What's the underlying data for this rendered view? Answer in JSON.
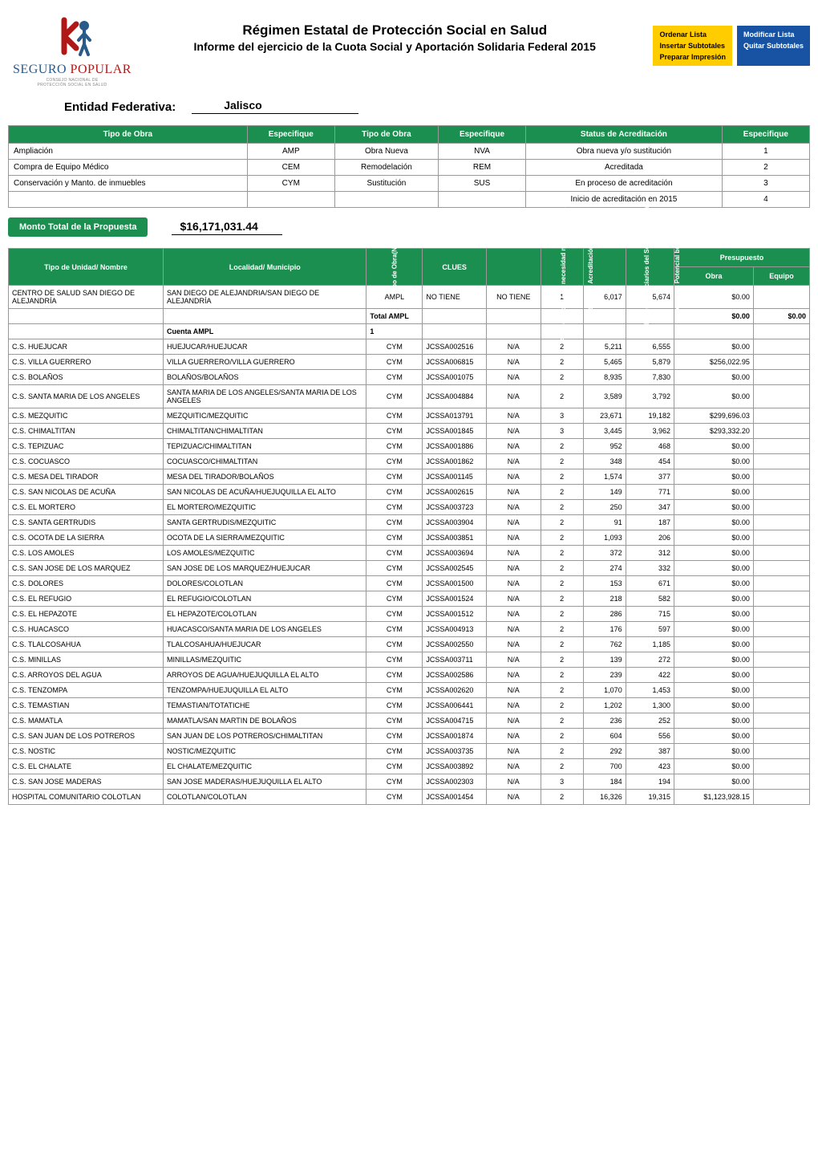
{
  "header": {
    "logo_brand_seguro": "SEGURO",
    "logo_brand_popular": "POPULAR",
    "logo_subline1": "CONSEJO NACIONAL DE",
    "logo_subline2": "PROTECCIÓN SOCIAL EN SALUD",
    "title_main": "Régimen Estatal de Protección Social en Salud",
    "title_sub": "Informe del ejercicio de la Cuota Social y Aportación Solidaria Federal 2015",
    "btn_yellow": [
      "Ordenar Lista",
      "Insertar Subtotales",
      "Preparar Impresión"
    ],
    "btn_blue": [
      "Modificar Lista",
      "Quitar Subtotales"
    ]
  },
  "entidad": {
    "label": "Entidad Federativa:",
    "value": "Jalisco"
  },
  "tipos": {
    "headers": [
      "Tipo de Obra",
      "Especifique",
      "Tipo de Obra",
      "Especifique",
      "Status de Acreditación",
      "Especifique"
    ],
    "rows": [
      [
        "Ampliación",
        "AMP",
        "Obra Nueva",
        "NVA",
        "Obra nueva y/o sustitución",
        "1"
      ],
      [
        "Compra de Equipo Médico",
        "CEM",
        "Remodelación",
        "REM",
        "Acreditada",
        "2"
      ],
      [
        "Conservación y Manto. de inmuebles",
        "CYM",
        "Sustitución",
        "SUS",
        "En proceso de acreditación",
        "3"
      ],
      [
        "",
        "",
        "",
        "",
        "Inicio de acreditación en 2015",
        "4"
      ]
    ]
  },
  "monto": {
    "label": "Monto Total de la Propuesta",
    "value": "$16,171,031.44"
  },
  "main": {
    "headers": {
      "tipo_unidad": "Tipo de Unidad/ Nombre",
      "localidad": "Localidad/ Municipio",
      "tipo_obra": "Tipo de Obra(NV,",
      "clues": "CLUES",
      "pmi": "PMI Certificado de necesidad no aplica para CYM",
      "status": "Status de Acreditación (1,2,3,4)",
      "benef": "No. de Beneficiarios del Seguro Popular",
      "poblacion": "Población Potencial beneficiaria",
      "presupuesto": "Presupuesto",
      "obra": "Obra",
      "equipo": "Equipo"
    },
    "rows": [
      {
        "tipo": "CENTRO DE SALUD SAN DIEGO DE ALEJANDRÍA",
        "loc": "SAN DIEGO DE ALEJANDRIA/SAN DIEGO DE ALEJANDRÍA",
        "tobra": "AMPL",
        "clues": "NO TIENE",
        "pmi": "NO TIENE",
        "st": "1",
        "ben": "6,017",
        "pob": "5,674",
        "obra": "$0.00",
        "eq": ""
      },
      {
        "tipo": "",
        "loc": "",
        "tobra": "Total AMPL",
        "clues": "",
        "pmi": "",
        "st": "",
        "ben": "",
        "pob": "",
        "obra": "$0.00",
        "eq": "$0.00",
        "bold": true
      },
      {
        "tipo": "",
        "loc": "Cuenta AMPL",
        "tobra": "1",
        "clues": "",
        "pmi": "",
        "st": "",
        "ben": "",
        "pob": "",
        "obra": "",
        "eq": "",
        "bold": true
      },
      {
        "tipo": "C.S. HUEJUCAR",
        "loc": "HUEJUCAR/HUEJUCAR",
        "tobra": "CYM",
        "clues": "JCSSA002516",
        "pmi": "N/A",
        "st": "2",
        "ben": "5,211",
        "pob": "6,555",
        "obra": "$0.00",
        "eq": ""
      },
      {
        "tipo": "C.S. VILLA GUERRERO",
        "loc": "VILLA GUERRERO/VILLA GUERRERO",
        "tobra": "CYM",
        "clues": "JCSSA006815",
        "pmi": "N/A",
        "st": "2",
        "ben": "5,465",
        "pob": "5,879",
        "obra": "$256,022.95",
        "eq": ""
      },
      {
        "tipo": "C.S. BOLAÑOS",
        "loc": "BOLAÑOS/BOLAÑOS",
        "tobra": "CYM",
        "clues": "JCSSA001075",
        "pmi": "N/A",
        "st": "2",
        "ben": "8,935",
        "pob": "7,830",
        "obra": "$0.00",
        "eq": ""
      },
      {
        "tipo": "C.S. SANTA MARIA DE LOS ANGELES",
        "loc": "SANTA MARIA DE LOS ANGELES/SANTA MARIA DE LOS ANGELES",
        "tobra": "CYM",
        "clues": "JCSSA004884",
        "pmi": "N/A",
        "st": "2",
        "ben": "3,589",
        "pob": "3,792",
        "obra": "$0.00",
        "eq": ""
      },
      {
        "tipo": "C.S. MEZQUITIC",
        "loc": "MEZQUITIC/MEZQUITIC",
        "tobra": "CYM",
        "clues": "JCSSA013791",
        "pmi": "N/A",
        "st": "3",
        "ben": "23,671",
        "pob": "19,182",
        "obra": "$299,696.03",
        "eq": ""
      },
      {
        "tipo": "C.S. CHIMALTITAN",
        "loc": "CHIMALTITAN/CHIMALTITAN",
        "tobra": "CYM",
        "clues": "JCSSA001845",
        "pmi": "N/A",
        "st": "3",
        "ben": "3,445",
        "pob": "3,962",
        "obra": "$293,332.20",
        "eq": ""
      },
      {
        "tipo": "C.S. TEPIZUAC",
        "loc": "TEPIZUAC/CHIMALTITAN",
        "tobra": "CYM",
        "clues": "JCSSA001886",
        "pmi": "N/A",
        "st": "2",
        "ben": "952",
        "pob": "468",
        "obra": "$0.00",
        "eq": ""
      },
      {
        "tipo": "C.S. COCUASCO",
        "loc": "COCUASCO/CHIMALTITAN",
        "tobra": "CYM",
        "clues": "JCSSA001862",
        "pmi": "N/A",
        "st": "2",
        "ben": "348",
        "pob": "454",
        "obra": "$0.00",
        "eq": ""
      },
      {
        "tipo": "C.S. MESA DEL TIRADOR",
        "loc": "MESA DEL TIRADOR/BOLAÑOS",
        "tobra": "CYM",
        "clues": "JCSSA001145",
        "pmi": "N/A",
        "st": "2",
        "ben": "1,574",
        "pob": "377",
        "obra": "$0.00",
        "eq": ""
      },
      {
        "tipo": "C.S. SAN NICOLAS DE ACUÑA",
        "loc": "SAN NICOLAS DE ACUÑA/HUEJUQUILLA EL ALTO",
        "tobra": "CYM",
        "clues": "JCSSA002615",
        "pmi": "N/A",
        "st": "2",
        "ben": "149",
        "pob": "771",
        "obra": "$0.00",
        "eq": ""
      },
      {
        "tipo": "C.S. EL MORTERO",
        "loc": "EL MORTERO/MEZQUITIC",
        "tobra": "CYM",
        "clues": "JCSSA003723",
        "pmi": "N/A",
        "st": "2",
        "ben": "250",
        "pob": "347",
        "obra": "$0.00",
        "eq": ""
      },
      {
        "tipo": "C.S. SANTA GERTRUDIS",
        "loc": "SANTA GERTRUDIS/MEZQUITIC",
        "tobra": "CYM",
        "clues": "JCSSA003904",
        "pmi": "N/A",
        "st": "2",
        "ben": "91",
        "pob": "187",
        "obra": "$0.00",
        "eq": ""
      },
      {
        "tipo": "C.S. OCOTA DE LA SIERRA",
        "loc": "OCOTA DE LA SIERRA/MEZQUITIC",
        "tobra": "CYM",
        "clues": "JCSSA003851",
        "pmi": "N/A",
        "st": "2",
        "ben": "1,093",
        "pob": "206",
        "obra": "$0.00",
        "eq": ""
      },
      {
        "tipo": "C.S. LOS AMOLES",
        "loc": "LOS AMOLES/MEZQUITIC",
        "tobra": "CYM",
        "clues": "JCSSA003694",
        "pmi": "N/A",
        "st": "2",
        "ben": "372",
        "pob": "312",
        "obra": "$0.00",
        "eq": ""
      },
      {
        "tipo": "C.S. SAN JOSE DE LOS MARQUEZ",
        "loc": "SAN JOSE DE LOS MARQUEZ/HUEJUCAR",
        "tobra": "CYM",
        "clues": "JCSSA002545",
        "pmi": "N/A",
        "st": "2",
        "ben": "274",
        "pob": "332",
        "obra": "$0.00",
        "eq": ""
      },
      {
        "tipo": "C.S. DOLORES",
        "loc": "DOLORES/COLOTLAN",
        "tobra": "CYM",
        "clues": "JCSSA001500",
        "pmi": "N/A",
        "st": "2",
        "ben": "153",
        "pob": "671",
        "obra": "$0.00",
        "eq": ""
      },
      {
        "tipo": "C.S. EL REFUGIO",
        "loc": "EL REFUGIO/COLOTLAN",
        "tobra": "CYM",
        "clues": "JCSSA001524",
        "pmi": "N/A",
        "st": "2",
        "ben": "218",
        "pob": "582",
        "obra": "$0.00",
        "eq": ""
      },
      {
        "tipo": "C.S. EL HEPAZOTE",
        "loc": "EL HEPAZOTE/COLOTLAN",
        "tobra": "CYM",
        "clues": "JCSSA001512",
        "pmi": "N/A",
        "st": "2",
        "ben": "286",
        "pob": "715",
        "obra": "$0.00",
        "eq": ""
      },
      {
        "tipo": "C.S. HUACASCO",
        "loc": "HUACASCO/SANTA MARIA DE LOS ANGELES",
        "tobra": "CYM",
        "clues": "JCSSA004913",
        "pmi": "N/A",
        "st": "2",
        "ben": "176",
        "pob": "597",
        "obra": "$0.00",
        "eq": ""
      },
      {
        "tipo": "C.S. TLALCOSAHUA",
        "loc": "TLALCOSAHUA/HUEJUCAR",
        "tobra": "CYM",
        "clues": "JCSSA002550",
        "pmi": "N/A",
        "st": "2",
        "ben": "762",
        "pob": "1,185",
        "obra": "$0.00",
        "eq": ""
      },
      {
        "tipo": "C.S. MINILLAS",
        "loc": "MINILLAS/MEZQUITIC",
        "tobra": "CYM",
        "clues": "JCSSA003711",
        "pmi": "N/A",
        "st": "2",
        "ben": "139",
        "pob": "272",
        "obra": "$0.00",
        "eq": ""
      },
      {
        "tipo": "C.S. ARROYOS DEL AGUA",
        "loc": "ARROYOS DE AGUA/HUEJUQUILLA EL ALTO",
        "tobra": "CYM",
        "clues": "JCSSA002586",
        "pmi": "N/A",
        "st": "2",
        "ben": "239",
        "pob": "422",
        "obra": "$0.00",
        "eq": ""
      },
      {
        "tipo": "C.S. TENZOMPA",
        "loc": "TENZOMPA/HUEJUQUILLA EL ALTO",
        "tobra": "CYM",
        "clues": "JCSSA002620",
        "pmi": "N/A",
        "st": "2",
        "ben": "1,070",
        "pob": "1,453",
        "obra": "$0.00",
        "eq": ""
      },
      {
        "tipo": "C.S. TEMASTIAN",
        "loc": "TEMASTIAN/TOTATICHE",
        "tobra": "CYM",
        "clues": "JCSSA006441",
        "pmi": "N/A",
        "st": "2",
        "ben": "1,202",
        "pob": "1,300",
        "obra": "$0.00",
        "eq": ""
      },
      {
        "tipo": "C.S. MAMATLA",
        "loc": "MAMATLA/SAN MARTIN DE BOLAÑOS",
        "tobra": "CYM",
        "clues": "JCSSA004715",
        "pmi": "N/A",
        "st": "2",
        "ben": "236",
        "pob": "252",
        "obra": "$0.00",
        "eq": ""
      },
      {
        "tipo": "C.S. SAN JUAN DE LOS POTREROS",
        "loc": "SAN JUAN DE LOS POTREROS/CHIMALTITAN",
        "tobra": "CYM",
        "clues": "JCSSA001874",
        "pmi": "N/A",
        "st": "2",
        "ben": "604",
        "pob": "556",
        "obra": "$0.00",
        "eq": ""
      },
      {
        "tipo": "C.S. NOSTIC",
        "loc": "NOSTIC/MEZQUITIC",
        "tobra": "CYM",
        "clues": "JCSSA003735",
        "pmi": "N/A",
        "st": "2",
        "ben": "292",
        "pob": "387",
        "obra": "$0.00",
        "eq": ""
      },
      {
        "tipo": "C.S. EL CHALATE",
        "loc": "EL CHALATE/MEZQUITIC",
        "tobra": "CYM",
        "clues": "JCSSA003892",
        "pmi": "N/A",
        "st": "2",
        "ben": "700",
        "pob": "423",
        "obra": "$0.00",
        "eq": ""
      },
      {
        "tipo": "C.S. SAN JOSE MADERAS",
        "loc": "SAN JOSE MADERAS/HUEJUQUILLA EL ALTO",
        "tobra": "CYM",
        "clues": "JCSSA002303",
        "pmi": "N/A",
        "st": "3",
        "ben": "184",
        "pob": "194",
        "obra": "$0.00",
        "eq": ""
      },
      {
        "tipo": "HOSPITAL COMUNITARIO COLOTLAN",
        "loc": "COLOTLAN/COLOTLAN",
        "tobra": "CYM",
        "clues": "JCSSA001454",
        "pmi": "N/A",
        "st": "2",
        "ben": "16,326",
        "pob": "19,315",
        "obra": "$1,123,928.15",
        "eq": ""
      }
    ]
  },
  "style": {
    "green": "#1b8f4f",
    "blue_btn": "#1853a3",
    "yellow_btn": "#ffcc00",
    "border": "#999999",
    "logo_blue": "#2a5a8a",
    "logo_red": "#b01818"
  }
}
